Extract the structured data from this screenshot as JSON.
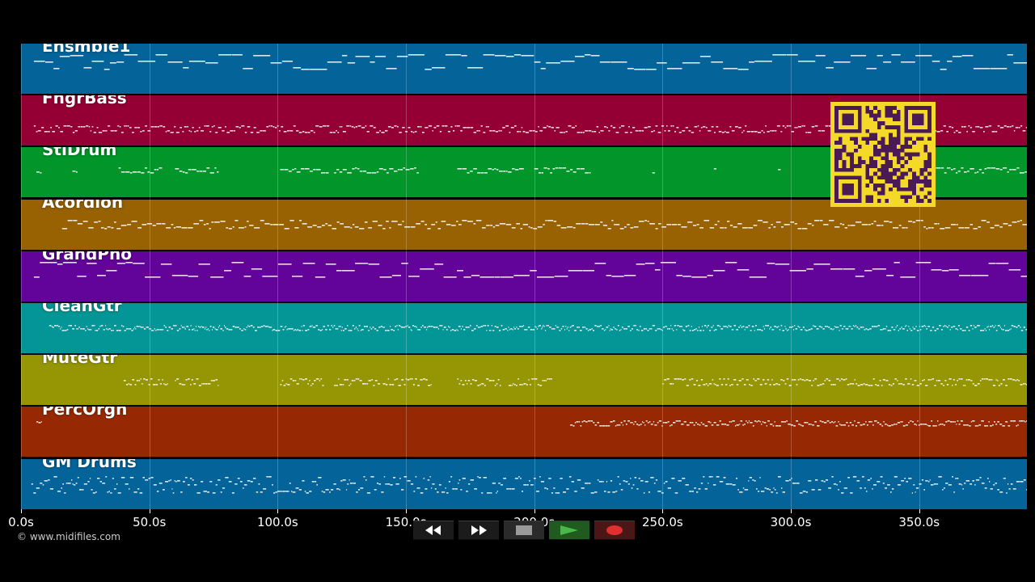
{
  "tracks": [
    {
      "name": "Ensmble1",
      "color": "#04649a",
      "pattern": "sustained"
    },
    {
      "name": "FngrBass",
      "color": "#940033",
      "pattern": "bass"
    },
    {
      "name": "StlDrum",
      "color": "#02962a",
      "pattern": "sparse-phrases"
    },
    {
      "name": "Acordion",
      "color": "#986101",
      "pattern": "melody"
    },
    {
      "name": "GrandPno",
      "color": "#62039a",
      "pattern": "sustained"
    },
    {
      "name": "CleanGtr",
      "color": "#049696",
      "pattern": "dense"
    },
    {
      "name": "MuteGtr",
      "color": "#969604",
      "pattern": "phrases-late"
    },
    {
      "name": "PercOrgn",
      "color": "#962904",
      "pattern": "late"
    },
    {
      "name": "GM Drums",
      "color": "#04649a",
      "pattern": "drums"
    }
  ],
  "timeline": {
    "axis": {
      "ticks": [
        "0.0s",
        "50.0s",
        "100.0s",
        "150.0s",
        "200.0s",
        "250.0s",
        "300.0s",
        "350.0s"
      ],
      "tick_values": [
        0,
        50,
        100,
        150,
        200,
        250,
        300,
        350
      ],
      "max": 392
    }
  },
  "copyright": "© www.midifiles.com",
  "controls": [
    {
      "name": "rewind",
      "icon": "rewind-icon",
      "bg": "#1b1b1b",
      "fg": "#ffffff"
    },
    {
      "name": "fast-forward",
      "icon": "fast-forward-icon",
      "bg": "#1b1b1b",
      "fg": "#ffffff"
    },
    {
      "name": "stop",
      "icon": "stop-icon",
      "bg": "#2a2a2a",
      "fg": "#9a9a9a"
    },
    {
      "name": "play",
      "icon": "play-icon",
      "bg": "#1f5a1f",
      "fg": "#48b848"
    },
    {
      "name": "record",
      "icon": "record-icon",
      "bg": "#4a1616",
      "fg": "#e03030"
    }
  ],
  "qr": {
    "color": "#f5d92a",
    "module_color": "#4a1a55"
  }
}
